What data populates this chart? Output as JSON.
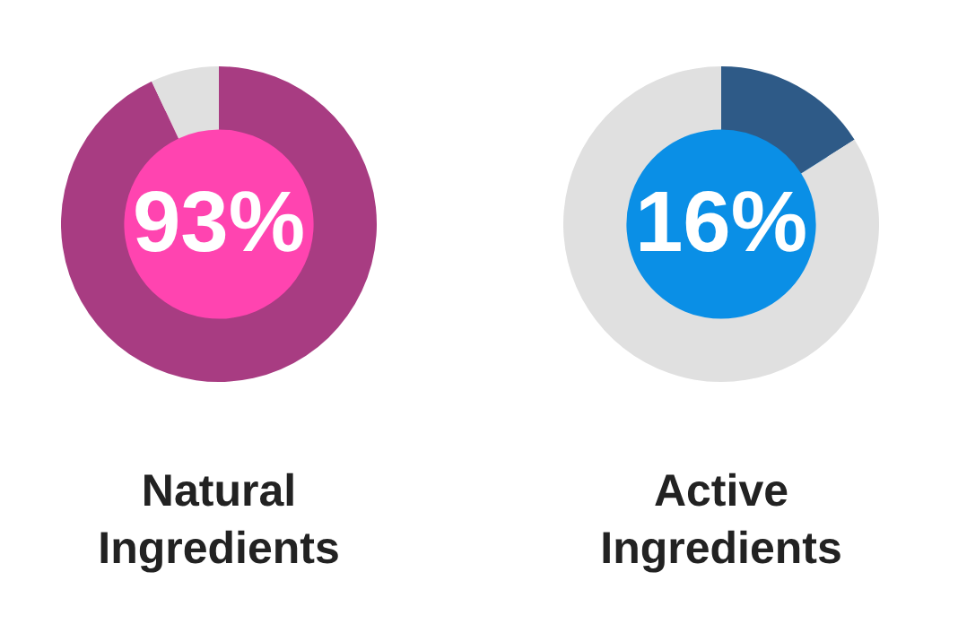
{
  "chart_data": [
    {
      "type": "donut",
      "title": "Natural Ingredients",
      "categories": [
        null,
        null
      ],
      "values": [
        93,
        7
      ],
      "colors": [
        "#a83c82",
        "#e0e0e0"
      ],
      "value_labels": [
        "93%",
        null
      ]
    },
    {
      "type": "donut",
      "title": "Active Ingredients",
      "categories": [
        null,
        null
      ],
      "values": [
        16,
        84
      ],
      "colors": [
        "#2e5a87",
        "#e0e0e0"
      ],
      "value_labels": [
        "16%",
        null
      ]
    }
  ]
}
